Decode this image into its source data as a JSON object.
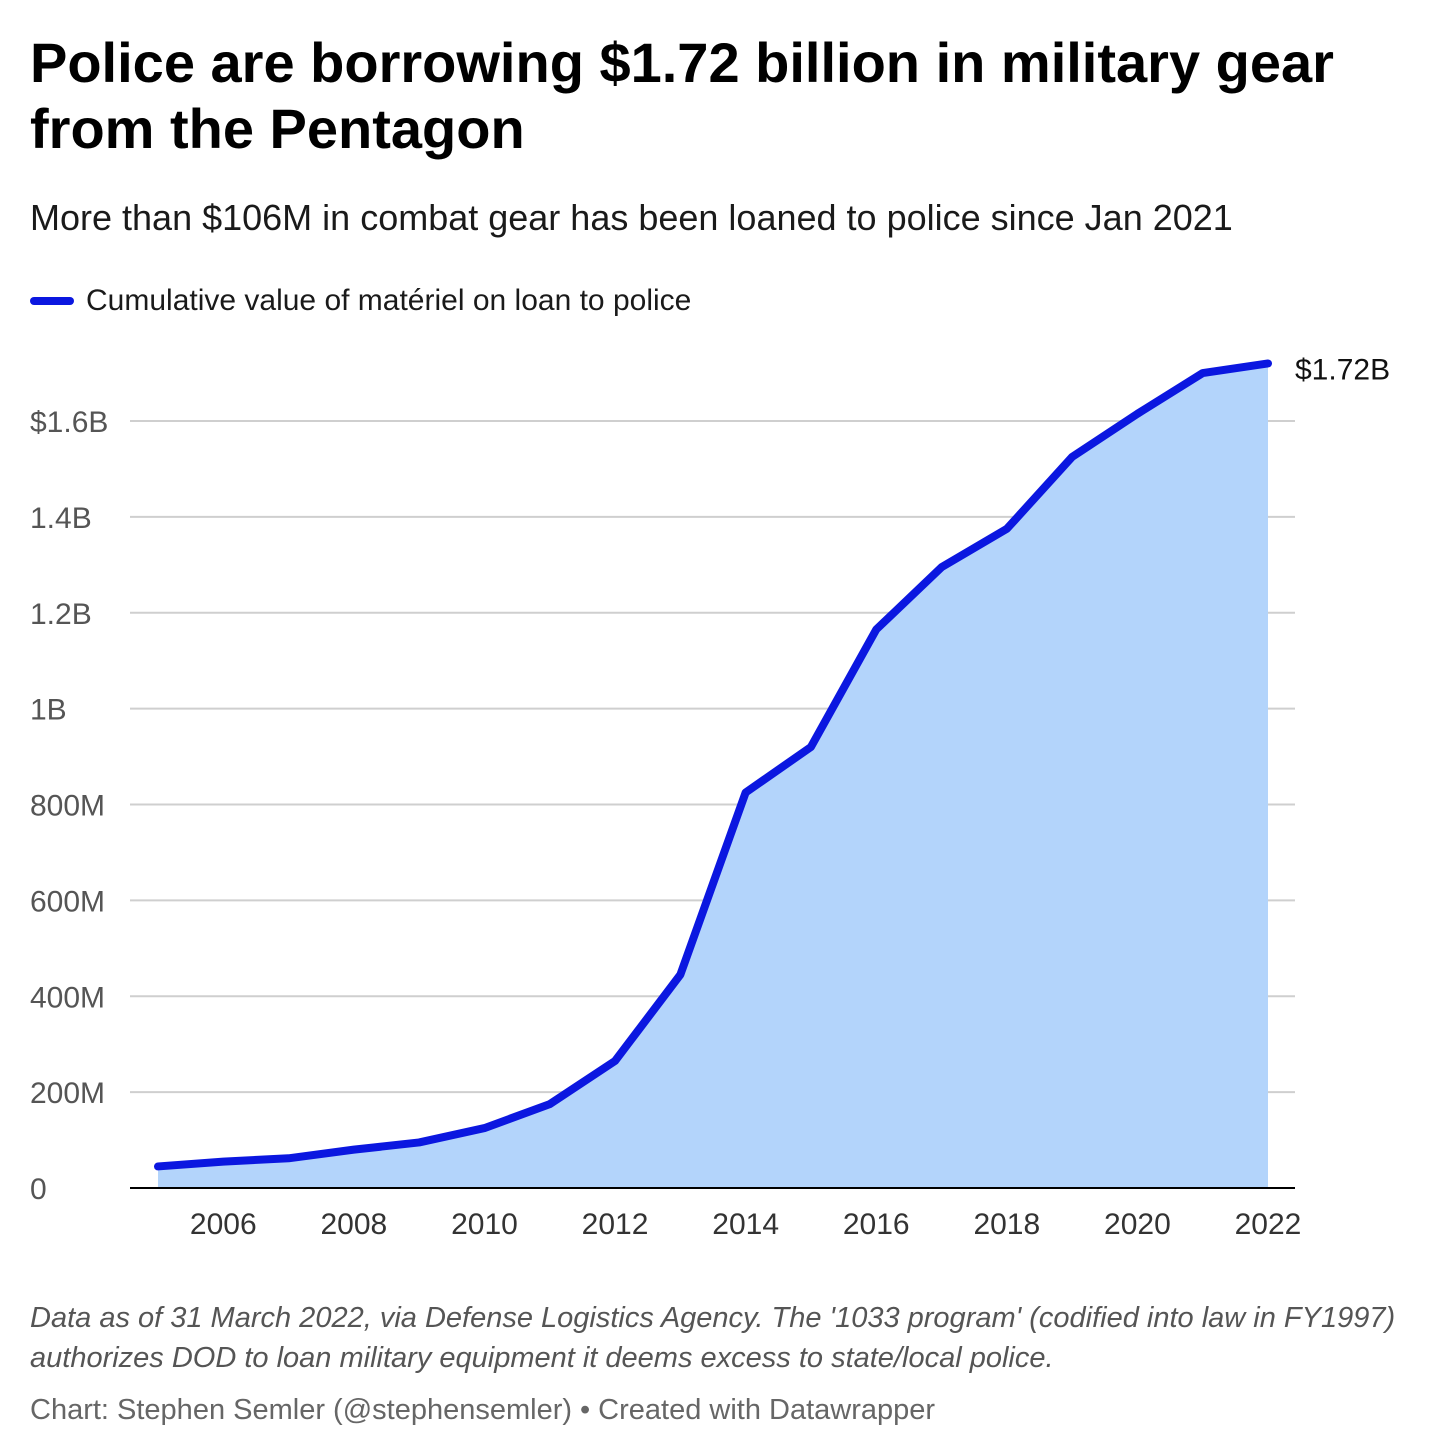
{
  "header": {
    "title": "Police are borrowing $1.72 billion in military gear from the Pentagon",
    "subtitle": "More than $106M in combat gear has been loaned to police since Jan 2021"
  },
  "legend": {
    "label": "Cumulative value of matériel on loan to police"
  },
  "colors": {
    "line": "#0b17e0",
    "area": "#b3d4fb",
    "grid": "#cfcfcf",
    "axis": "#000000"
  },
  "chart_data": {
    "type": "area",
    "title": "Police are borrowing $1.72 billion in military gear from the Pentagon",
    "subtitle": "More than $106M in combat gear has been loaned to police since Jan 2021",
    "xlabel": "",
    "ylabel": "",
    "x": [
      2005,
      2006,
      2007,
      2008,
      2009,
      2010,
      2011,
      2012,
      2013,
      2014,
      2015,
      2016,
      2017,
      2018,
      2019,
      2020,
      2021,
      2022
    ],
    "series": [
      {
        "name": "Cumulative value of matériel on loan to police",
        "values": [
          45000000,
          55000000,
          62000000,
          80000000,
          95000000,
          125000000,
          175000000,
          265000000,
          445000000,
          825000000,
          920000000,
          1165000000,
          1295000000,
          1375000000,
          1525000000,
          1615000000,
          1700000000,
          1720000000
        ]
      }
    ],
    "xlim": [
      2005,
      2022
    ],
    "ylim": [
      0,
      1750000000
    ],
    "x_ticks": [
      2006,
      2008,
      2010,
      2012,
      2014,
      2016,
      2018,
      2020,
      2022
    ],
    "y_ticks": [
      {
        "value": 0,
        "label": "0"
      },
      {
        "value": 200000000,
        "label": "200M"
      },
      {
        "value": 400000000,
        "label": "400M"
      },
      {
        "value": 600000000,
        "label": "600M"
      },
      {
        "value": 800000000,
        "label": "800M"
      },
      {
        "value": 1000000000,
        "label": "1B"
      },
      {
        "value": 1200000000,
        "label": "1.2B"
      },
      {
        "value": 1400000000,
        "label": "1.4B"
      },
      {
        "value": 1600000000,
        "label": "$1.6B"
      }
    ],
    "end_label": "$1.72B",
    "grid": true,
    "legend_position": "top-left"
  },
  "footer": {
    "note": "Data as of 31 March 2022, via Defense Logistics Agency. The '1033 program' (codified into law in FY1997) authorizes DOD to loan military equipment it deems excess to state/local police.",
    "credit_author": "Chart: Stephen Semler (@stephensemler)",
    "credit_separator": "•",
    "credit_tool": "Created with Datawrapper"
  }
}
